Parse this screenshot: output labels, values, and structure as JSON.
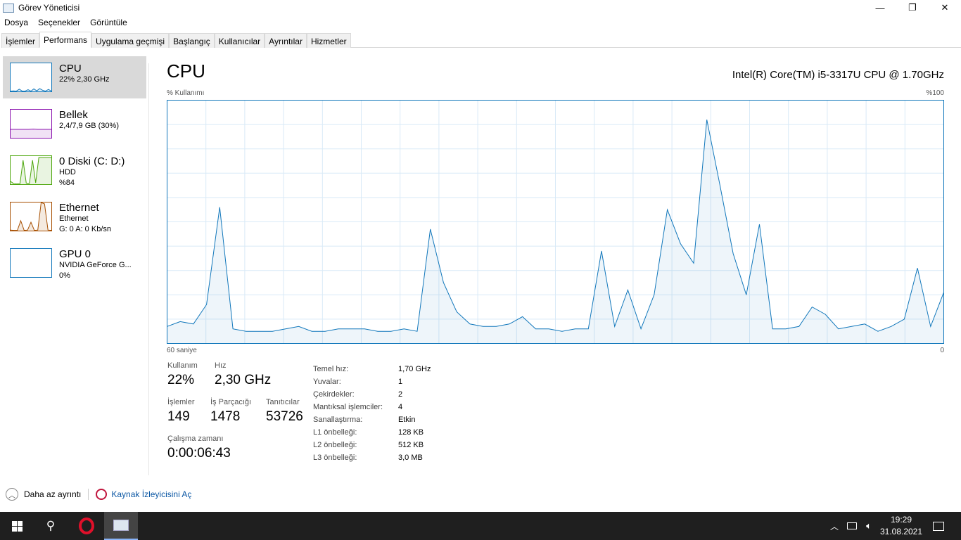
{
  "window": {
    "title": "Görev Yöneticisi",
    "min": "—",
    "max": "❐",
    "close": "✕"
  },
  "menu": [
    "Dosya",
    "Seçenekler",
    "Görüntüle"
  ],
  "tabs": [
    {
      "label": "İşlemler"
    },
    {
      "label": "Performans",
      "active": true
    },
    {
      "label": "Uygulama geçmişi"
    },
    {
      "label": "Başlangıç"
    },
    {
      "label": "Kullanıcılar"
    },
    {
      "label": "Ayrıntılar"
    },
    {
      "label": "Hizmetler"
    }
  ],
  "sidebar": [
    {
      "name": "CPU",
      "l1": "22% 2,30 GHz",
      "l2": "",
      "color": "#1177bb"
    },
    {
      "name": "Bellek",
      "l1": "2,4/7,9 GB (30%)",
      "l2": "",
      "color": "#8b12ae"
    },
    {
      "name": "0 Diski (C: D:)",
      "l1": "HDD",
      "l2": "%84",
      "color": "#4da60c"
    },
    {
      "name": "Ethernet",
      "l1": "Ethernet",
      "l2": "G: 0 A: 0 Kb/sn",
      "color": "#a74f01"
    },
    {
      "name": "GPU 0",
      "l1": "NVIDIA GeForce G...",
      "l2": "0%",
      "color": "#1177bb"
    }
  ],
  "main": {
    "title": "CPU",
    "cpu_name": "Intel(R) Core(TM) i5-3317U CPU @ 1.70GHz",
    "y_label": "% Kullanımı",
    "y_max": "%100",
    "x_left": "60 saniye",
    "x_right": "0"
  },
  "chart_data": {
    "type": "area",
    "ylim": [
      0,
      100
    ],
    "grid": true,
    "color": "#1177bb",
    "values": [
      7,
      9,
      8,
      16,
      56,
      6,
      5,
      5,
      5,
      6,
      7,
      5,
      5,
      6,
      6,
      6,
      5,
      5,
      6,
      5,
      47,
      25,
      13,
      8,
      7,
      7,
      8,
      11,
      6,
      6,
      5,
      6,
      6,
      38,
      7,
      22,
      6,
      20,
      55,
      41,
      33,
      92,
      65,
      37,
      20,
      49,
      6,
      6,
      7,
      15,
      12,
      6,
      7,
      8,
      5,
      7,
      10,
      31,
      7,
      21
    ]
  },
  "stats": {
    "usage_k": "Kullanım",
    "usage_v": "22%",
    "speed_k": "Hız",
    "speed_v": "2,30 GHz",
    "proc_k": "İşlemler",
    "proc_v": "149",
    "thr_k": "İş Parçacığı",
    "thr_v": "1478",
    "hnd_k": "Tanıtıcılar",
    "hnd_v": "53726",
    "up_k": "Çalışma zamanı",
    "up_v": "0:00:06:43"
  },
  "specs": [
    [
      "Temel hız:",
      "1,70 GHz"
    ],
    [
      "Yuvalar:",
      "1"
    ],
    [
      "Çekirdekler:",
      "2"
    ],
    [
      "Mantıksal işlemciler:",
      "4"
    ],
    [
      "Sanallaştırma:",
      "Etkin"
    ],
    [
      "L1 önbelleği:",
      "128 KB"
    ],
    [
      "L2 önbelleği:",
      "512 KB"
    ],
    [
      "L3 önbelleği:",
      "3,0 MB"
    ]
  ],
  "footer": {
    "less": "Daha az ayrıntı",
    "monitor": "Kaynak İzleyicisini Aç"
  },
  "taskbar": {
    "time": "19:29",
    "date": "31.08.2021"
  }
}
